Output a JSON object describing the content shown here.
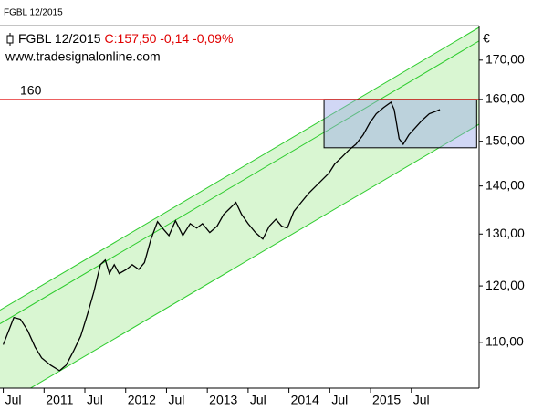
{
  "chart_data": {
    "type": "line",
    "header": "FGBL 12/2015",
    "quote": "C:157,50 -0,14 -0,09%",
    "source": "www.tradesignalonline.com",
    "y_unit": "€",
    "log_y": true,
    "xlim": [
      2010.46,
      2016.33
    ],
    "ylim": [
      102.5,
      179.3
    ],
    "xticks": [
      {
        "value": 2010.5,
        "label": "Jul"
      },
      2011,
      {
        "value": 2011.5,
        "label": "Jul"
      },
      2012,
      {
        "value": 2012.5,
        "label": "Jul"
      },
      2013,
      {
        "value": 2013.5,
        "label": "Jul"
      },
      2014,
      {
        "value": 2014.5,
        "label": "Jul"
      },
      2015,
      {
        "value": 2015.5,
        "label": "Jul"
      }
    ],
    "yticks": [
      {
        "value": 110,
        "label": "110,00"
      },
      {
        "value": 120,
        "label": "120,00"
      },
      {
        "value": 130,
        "label": "130,00"
      },
      {
        "value": 140,
        "label": "140,00"
      },
      {
        "value": 150,
        "label": "150,00"
      },
      {
        "value": 160,
        "label": "160,00"
      },
      {
        "value": 170,
        "label": "170,00"
      }
    ],
    "x": [
      2010.5,
      2010.63,
      2010.71,
      2010.8,
      2010.89,
      2010.97,
      2011.08,
      2011.19,
      2011.27,
      2011.36,
      2011.45,
      2011.53,
      2011.61,
      2011.69,
      2011.75,
      2011.8,
      2011.86,
      2011.92,
      2012.01,
      2012.08,
      2012.16,
      2012.23,
      2012.31,
      2012.39,
      2012.45,
      2012.53,
      2012.61,
      2012.7,
      2012.79,
      2012.87,
      2012.94,
      2013.03,
      2013.12,
      2013.2,
      2013.28,
      2013.35,
      2013.42,
      2013.5,
      2013.59,
      2013.68,
      2013.76,
      2013.84,
      2013.91,
      2013.98,
      2014.06,
      2014.15,
      2014.24,
      2014.32,
      2014.4,
      2014.49,
      2014.56,
      2014.65,
      2014.73,
      2014.82,
      2014.91,
      2014.99,
      2015.07,
      2015.16,
      2015.25,
      2015.29,
      2015.35,
      2015.4,
      2015.47,
      2015.55,
      2015.63,
      2015.72,
      2015.8,
      2015.85
    ],
    "series": [
      {
        "name": "FGBL 12/2015",
        "color": "#000000",
        "values": [
          109.6,
          114.3,
          114.0,
          112.0,
          109.2,
          107.4,
          106.2,
          105.3,
          106.2,
          108.5,
          111.1,
          114.8,
          118.9,
          124.0,
          124.9,
          122.3,
          124.0,
          122.3,
          123.1,
          124.0,
          123.1,
          124.4,
          129.0,
          132.5,
          131.2,
          129.7,
          132.7,
          129.7,
          132.1,
          131.2,
          132.1,
          130.3,
          131.6,
          134.0,
          135.3,
          136.5,
          134.0,
          132.1,
          130.3,
          129.0,
          131.6,
          133.0,
          131.6,
          131.2,
          134.6,
          136.5,
          138.4,
          139.8,
          141.2,
          142.8,
          144.8,
          146.4,
          147.9,
          149.3,
          151.5,
          154.3,
          156.5,
          158.0,
          159.3,
          157.5,
          150.6,
          149.3,
          151.5,
          153.2,
          154.9,
          156.5,
          157.1,
          157.5
        ]
      }
    ],
    "hline": {
      "value": 160,
      "label": "160",
      "color": "#e00000"
    },
    "channel_color": "#2ecc2e",
    "channel_fill": "#d9f6d2",
    "channels": [
      {
        "x": [
          2010.46,
          2016.33
        ],
        "values": [
          115.6,
          178.8
        ]
      },
      {
        "x": [
          2010.46,
          2016.33
        ],
        "values": [
          113.2,
          175.1
        ]
      },
      {
        "x": [
          2010.46,
          2016.33
        ],
        "values": [
          99.7,
          154.0
        ]
      }
    ],
    "box": {
      "x": [
        2014.43,
        2016.3
      ],
      "y": [
        148.5,
        160
      ],
      "color": "#9aa6e8"
    }
  }
}
